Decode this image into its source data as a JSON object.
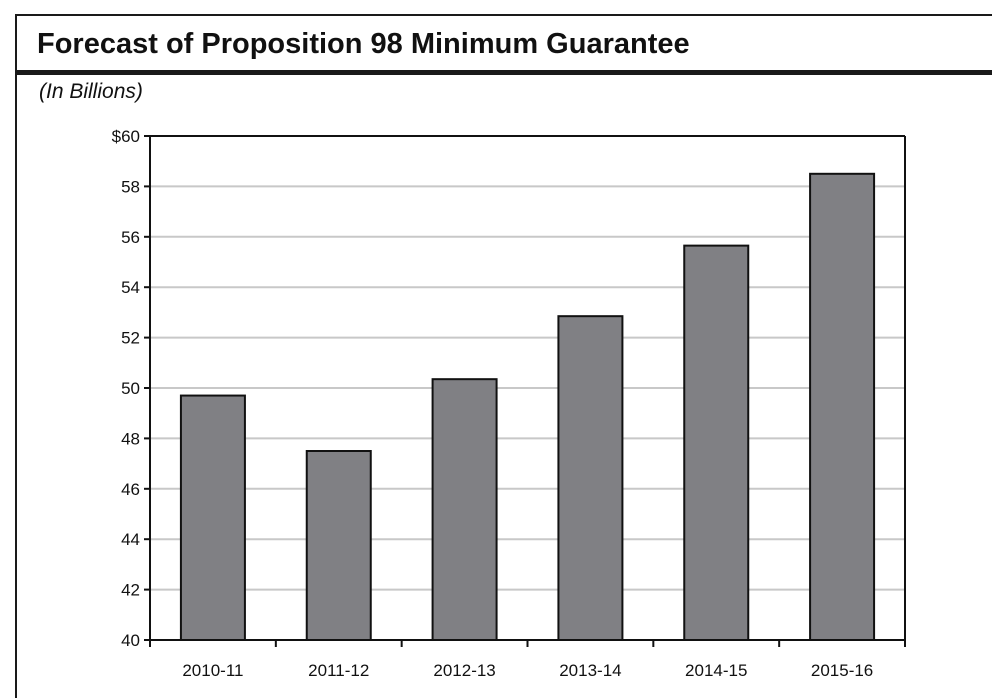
{
  "header": {
    "title": "Forecast of Proposition 98 Minimum Guarantee",
    "subtitle": "(In Billions)"
  },
  "colors": {
    "bar_fill": "#808084",
    "bar_stroke": "#111111",
    "gridline": "#c8c8c8",
    "axis": "#111111"
  },
  "chart_data": {
    "type": "bar",
    "title": "Forecast of Proposition 98 Minimum Guarantee",
    "subtitle": "(In Billions)",
    "xlabel": "",
    "ylabel": "",
    "categories": [
      "2010-11",
      "2011-12",
      "2012-13",
      "2013-14",
      "2014-15",
      "2015-16"
    ],
    "values": [
      49.7,
      47.5,
      50.35,
      52.85,
      55.65,
      58.5
    ],
    "ylim": [
      40,
      60
    ],
    "yticks": [
      40,
      42,
      44,
      46,
      48,
      50,
      52,
      54,
      56,
      58,
      60
    ],
    "ytick_labels": [
      "40",
      "42",
      "44",
      "46",
      "48",
      "50",
      "52",
      "54",
      "56",
      "58",
      "$60"
    ],
    "grid": true,
    "legend": "none"
  }
}
